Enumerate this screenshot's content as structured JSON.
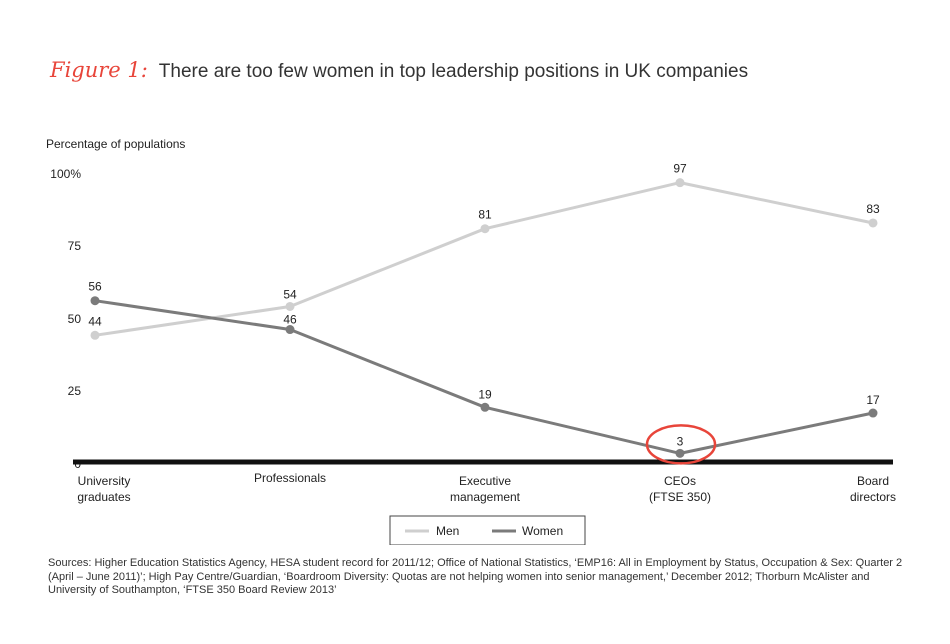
{
  "figure_label": "Figure 1:",
  "title": "There are too few women in top leadership positions in UK companies",
  "sources": "Sources: Higher Education Statistics Agency, HESA student record for 2011/12; Office of National Statistics, ‘EMP16: All in Employment by Status, Occupation & Sex: Quarter 2 (April – June 2011)’; High Pay Centre/Guardian, ‘Boardroom Diversity: Quotas are not helping women into senior management,’ December 2012; Thorburn McAlister and University of Southampton, ‘FTSE 350 Board Review 2013’",
  "colors": {
    "men": "#cfcfcf",
    "women": "#7b7b7b",
    "accent": "#e8453a",
    "axis": "#111111"
  },
  "chart_data": {
    "type": "line",
    "ylabel": "Percentage of populations",
    "ylim": [
      0,
      100
    ],
    "yticks": [
      "0",
      "25",
      "50",
      "75",
      "100%"
    ],
    "categories": [
      [
        "University",
        "graduates"
      ],
      [
        "Professionals"
      ],
      [
        "Executive",
        "management"
      ],
      [
        "CEOs",
        "(FTSE 350)"
      ],
      [
        "Board",
        "directors"
      ]
    ],
    "series": [
      {
        "name": "Men",
        "values": [
          44,
          54,
          81,
          97,
          83
        ]
      },
      {
        "name": "Women",
        "values": [
          56,
          46,
          19,
          3,
          17
        ]
      }
    ],
    "legend_position": "bottom-center",
    "highlight": {
      "series": "Women",
      "category_index": 3
    }
  }
}
